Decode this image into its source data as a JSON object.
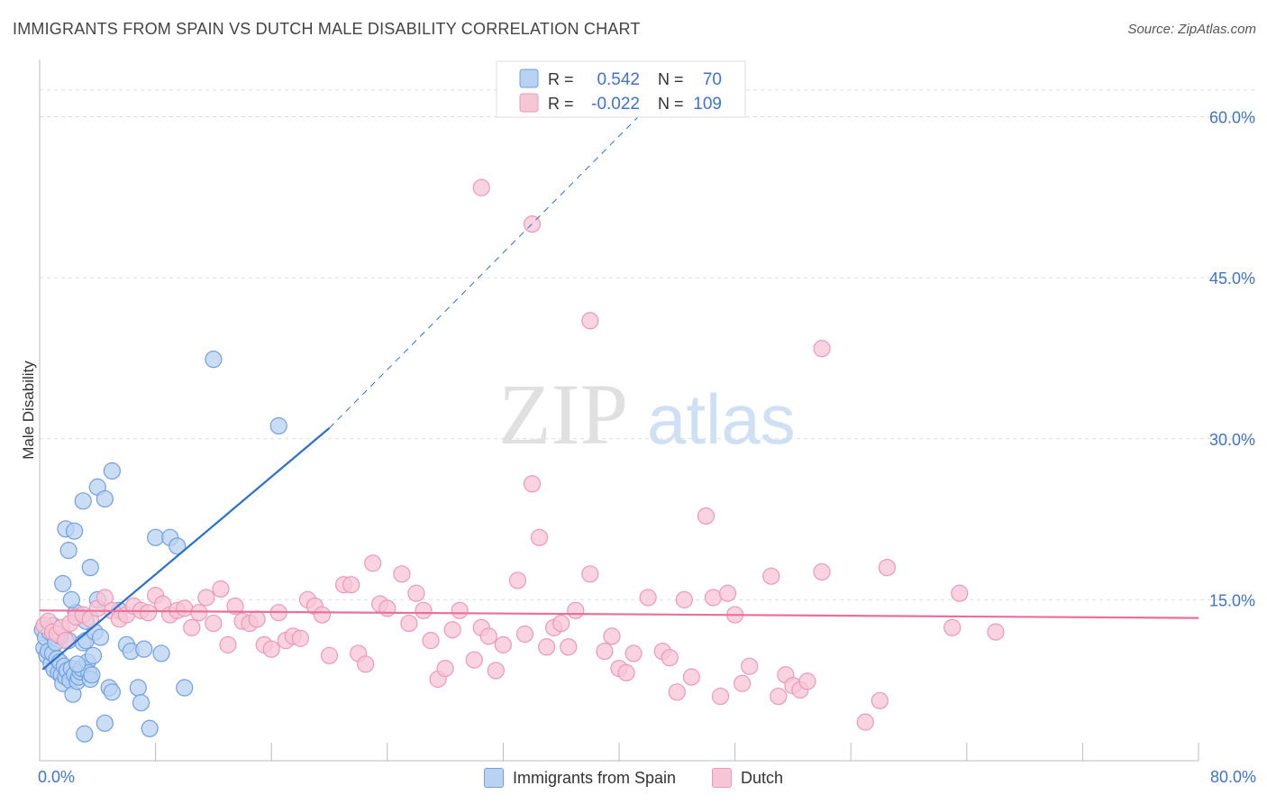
{
  "title": "IMMIGRANTS FROM SPAIN VS DUTCH MALE DISABILITY CORRELATION CHART",
  "source": "Source: ZipAtlas.com",
  "watermark": {
    "zip": "ZIP",
    "atlas": "atlas"
  },
  "chart_data": {
    "type": "scatter",
    "title": "IMMIGRANTS FROM SPAIN VS DUTCH MALE DISABILITY CORRELATION CHART",
    "xlabel": "",
    "ylabel": "Male Disability",
    "xlim": [
      0,
      80
    ],
    "ylim": [
      0,
      65
    ],
    "x_tick_labels": [
      "0.0%",
      "80.0%"
    ],
    "y_ticks": [
      15,
      30,
      45,
      60
    ],
    "y_tick_labels": [
      "15.0%",
      "30.0%",
      "45.0%",
      "60.0%"
    ],
    "grid": true,
    "legend_top": [
      {
        "r_label": "R =",
        "r_value": "0.542",
        "n_label": "N =",
        "n_value": "70"
      },
      {
        "r_label": "R =",
        "r_value": "-0.022",
        "n_label": "N =",
        "n_value": "109"
      }
    ],
    "series": [
      {
        "name": "Immigrants from Spain",
        "color": "#6fa0e0",
        "fill": "#b9d2f2",
        "trend_color": "#2a6fd0",
        "trend_solid": [
          [
            0.2,
            8.5
          ],
          [
            20,
            31
          ]
        ],
        "trend_dashed": [
          [
            20,
            31
          ],
          [
            45,
            65
          ]
        ],
        "points": [
          [
            0.2,
            12.2
          ],
          [
            0.3,
            10.5
          ],
          [
            0.4,
            11.5
          ],
          [
            0.5,
            9.8
          ],
          [
            0.6,
            10.2
          ],
          [
            0.7,
            12.0
          ],
          [
            0.8,
            9.0
          ],
          [
            0.9,
            10.0
          ],
          [
            1.0,
            8.5
          ],
          [
            1.1,
            11.0
          ],
          [
            1.2,
            9.5
          ],
          [
            1.3,
            8.2
          ],
          [
            1.4,
            9.2
          ],
          [
            1.5,
            8.0
          ],
          [
            1.6,
            7.2
          ],
          [
            1.7,
            8.8
          ],
          [
            1.8,
            7.8
          ],
          [
            1.9,
            8.4
          ],
          [
            2.0,
            11.2
          ],
          [
            2.1,
            7.5
          ],
          [
            2.2,
            8.6
          ],
          [
            2.3,
            6.2
          ],
          [
            2.4,
            8.0
          ],
          [
            2.5,
            13.8
          ],
          [
            2.6,
            7.4
          ],
          [
            2.7,
            7.8
          ],
          [
            2.8,
            8.3
          ],
          [
            2.9,
            8.6
          ],
          [
            3.0,
            11.0
          ],
          [
            3.1,
            2.5
          ],
          [
            3.2,
            11.2
          ],
          [
            3.3,
            9.2
          ],
          [
            3.4,
            8.2
          ],
          [
            3.5,
            7.6
          ],
          [
            3.6,
            8.0
          ],
          [
            3.7,
            9.8
          ],
          [
            3.8,
            12.0
          ],
          [
            4.0,
            15.0
          ],
          [
            4.2,
            11.5
          ],
          [
            4.5,
            3.5
          ],
          [
            4.8,
            6.8
          ],
          [
            5.0,
            6.4
          ],
          [
            5.5,
            14.0
          ],
          [
            6.0,
            10.8
          ],
          [
            6.3,
            10.2
          ],
          [
            6.8,
            6.8
          ],
          [
            7.0,
            5.4
          ],
          [
            7.2,
            10.4
          ],
          [
            7.6,
            3.0
          ],
          [
            8.0,
            20.8
          ],
          [
            8.4,
            10.0
          ],
          [
            9.0,
            20.8
          ],
          [
            9.5,
            20.0
          ],
          [
            10.0,
            6.8
          ],
          [
            12.0,
            37.4
          ],
          [
            16.5,
            31.2
          ],
          [
            1.6,
            16.5
          ],
          [
            1.8,
            21.6
          ],
          [
            2.0,
            19.6
          ],
          [
            2.4,
            21.4
          ],
          [
            3.0,
            24.2
          ],
          [
            3.5,
            18.0
          ],
          [
            4.0,
            25.5
          ],
          [
            4.5,
            24.4
          ],
          [
            5.0,
            27.0
          ],
          [
            3.2,
            13.0
          ],
          [
            2.2,
            15.0
          ],
          [
            1.4,
            11.6
          ],
          [
            2.6,
            9.0
          ],
          [
            0.9,
            12.6
          ]
        ]
      },
      {
        "name": "Dutch",
        "color": "#ef98b4",
        "fill": "#f7c6d6",
        "trend_color": "#e8709a",
        "trend_solid": [
          [
            0,
            14.0
          ],
          [
            80,
            13.3
          ]
        ],
        "points": [
          [
            0.3,
            12.6
          ],
          [
            0.6,
            13.0
          ],
          [
            0.9,
            12.0
          ],
          [
            1.2,
            11.8
          ],
          [
            1.5,
            12.4
          ],
          [
            1.8,
            11.2
          ],
          [
            2.1,
            12.8
          ],
          [
            2.5,
            13.4
          ],
          [
            3.0,
            13.6
          ],
          [
            3.5,
            13.2
          ],
          [
            4.0,
            14.2
          ],
          [
            4.5,
            15.2
          ],
          [
            5.0,
            14.0
          ],
          [
            5.5,
            13.2
          ],
          [
            6.0,
            13.6
          ],
          [
            6.5,
            14.4
          ],
          [
            7.0,
            14.0
          ],
          [
            7.5,
            13.8
          ],
          [
            8.0,
            15.4
          ],
          [
            8.5,
            14.6
          ],
          [
            9.0,
            13.6
          ],
          [
            9.5,
            14.0
          ],
          [
            10.0,
            14.2
          ],
          [
            10.5,
            12.4
          ],
          [
            11.0,
            13.8
          ],
          [
            11.5,
            15.2
          ],
          [
            12.0,
            12.8
          ],
          [
            12.5,
            16.0
          ],
          [
            13.0,
            10.8
          ],
          [
            13.5,
            14.4
          ],
          [
            14.0,
            13.0
          ],
          [
            14.5,
            12.8
          ],
          [
            15.0,
            13.2
          ],
          [
            15.5,
            10.8
          ],
          [
            16.0,
            10.4
          ],
          [
            16.5,
            13.8
          ],
          [
            17.0,
            11.2
          ],
          [
            17.5,
            11.6
          ],
          [
            18.0,
            11.4
          ],
          [
            18.5,
            15.0
          ],
          [
            19.0,
            14.4
          ],
          [
            19.5,
            13.6
          ],
          [
            20.0,
            9.8
          ],
          [
            21.0,
            16.4
          ],
          [
            21.5,
            16.4
          ],
          [
            22.0,
            10.0
          ],
          [
            22.5,
            9.0
          ],
          [
            23.0,
            18.4
          ],
          [
            23.5,
            14.6
          ],
          [
            24.0,
            14.2
          ],
          [
            25.0,
            17.4
          ],
          [
            25.5,
            12.8
          ],
          [
            26.0,
            15.6
          ],
          [
            26.5,
            14.0
          ],
          [
            27.0,
            11.2
          ],
          [
            27.5,
            7.6
          ],
          [
            28.0,
            8.6
          ],
          [
            28.5,
            12.2
          ],
          [
            29.0,
            14.0
          ],
          [
            30.0,
            9.4
          ],
          [
            30.5,
            12.4
          ],
          [
            31.0,
            11.6
          ],
          [
            31.5,
            8.4
          ],
          [
            32.0,
            10.8
          ],
          [
            33.0,
            16.8
          ],
          [
            33.5,
            11.8
          ],
          [
            34.0,
            25.8
          ],
          [
            34.5,
            20.8
          ],
          [
            35.0,
            10.6
          ],
          [
            35.5,
            12.4
          ],
          [
            36.0,
            12.8
          ],
          [
            36.5,
            10.6
          ],
          [
            37.0,
            14.0
          ],
          [
            38.0,
            17.4
          ],
          [
            39.0,
            10.2
          ],
          [
            39.5,
            11.6
          ],
          [
            40.0,
            8.6
          ],
          [
            40.5,
            8.2
          ],
          [
            41.0,
            10.0
          ],
          [
            42.0,
            15.2
          ],
          [
            43.0,
            10.2
          ],
          [
            43.5,
            9.6
          ],
          [
            44.0,
            6.4
          ],
          [
            44.5,
            15.0
          ],
          [
            45.0,
            7.8
          ],
          [
            46.0,
            22.8
          ],
          [
            46.5,
            15.2
          ],
          [
            47.0,
            6.0
          ],
          [
            47.5,
            15.6
          ],
          [
            48.0,
            13.6
          ],
          [
            48.5,
            7.2
          ],
          [
            49.0,
            8.8
          ],
          [
            50.5,
            17.2
          ],
          [
            51.0,
            6.0
          ],
          [
            51.5,
            8.0
          ],
          [
            52.0,
            7.0
          ],
          [
            52.5,
            6.6
          ],
          [
            53.0,
            7.4
          ],
          [
            54.0,
            17.6
          ],
          [
            57.0,
            3.6
          ],
          [
            58.0,
            5.6
          ],
          [
            58.5,
            18.0
          ],
          [
            63.0,
            12.4
          ],
          [
            63.5,
            15.6
          ],
          [
            66.0,
            12.0
          ],
          [
            30.5,
            53.4
          ],
          [
            34.0,
            50.0
          ],
          [
            38.0,
            41.0
          ],
          [
            54.0,
            38.4
          ]
        ]
      }
    ]
  },
  "legend_bottom": [
    {
      "label": "Immigrants from Spain",
      "color": "#b9d2f2",
      "border": "#6fa0e0"
    },
    {
      "label": "Dutch",
      "color": "#f7c6d6",
      "border": "#ef98b4"
    }
  ]
}
